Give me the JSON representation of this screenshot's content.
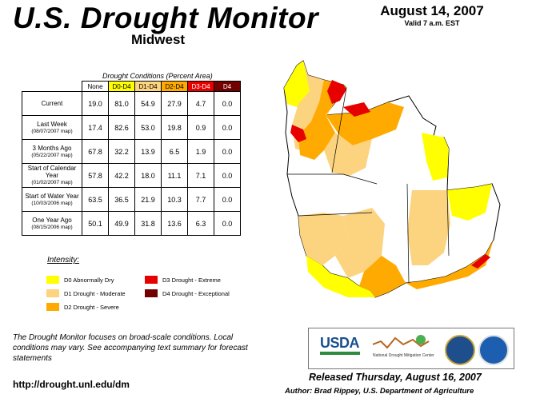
{
  "title": "U.S. Drought Monitor",
  "region": "Midwest",
  "date": "August 14, 2007",
  "valid": "Valid 7 a.m. EST",
  "table": {
    "title": "Drought Conditions (Percent Area)",
    "headers": [
      "None",
      "D0-D4",
      "D1-D4",
      "D2-D4",
      "D3-D4",
      "D4"
    ],
    "header_colors": [
      "#ffffff",
      "#ffff00",
      "#fcd37f",
      "#ffaa00",
      "#e60000",
      "#730000"
    ],
    "header_text_colors": [
      "#000000",
      "#000000",
      "#000000",
      "#000000",
      "#ffffff",
      "#ffffff"
    ],
    "rows": [
      {
        "label": "Current",
        "sub": "",
        "values": [
          "19.0",
          "81.0",
          "54.9",
          "27.9",
          "4.7",
          "0.0"
        ]
      },
      {
        "label": "Last Week",
        "sub": "(08/07/2007 map)",
        "values": [
          "17.4",
          "82.6",
          "53.0",
          "19.8",
          "0.9",
          "0.0"
        ]
      },
      {
        "label": "3 Months Ago",
        "sub": "(05/22/2007 map)",
        "values": [
          "67.8",
          "32.2",
          "13.9",
          "6.5",
          "1.9",
          "0.0"
        ]
      },
      {
        "label": "Start of Calendar Year",
        "sub": "(01/02/2007 map)",
        "values": [
          "57.8",
          "42.2",
          "18.0",
          "11.1",
          "7.1",
          "0.0"
        ]
      },
      {
        "label": "Start of Water Year",
        "sub": "(10/03/2006 map)",
        "values": [
          "63.5",
          "36.5",
          "21.9",
          "10.3",
          "7.7",
          "0.0"
        ]
      },
      {
        "label": "One Year Ago",
        "sub": "(08/15/2006 map)",
        "values": [
          "50.1",
          "49.9",
          "31.8",
          "13.6",
          "6.3",
          "0.0"
        ]
      }
    ]
  },
  "legend": {
    "title": "Intensity:",
    "items": [
      {
        "label": "D0 Abnormally Dry",
        "color": "#ffff00"
      },
      {
        "label": "D1 Drought - Moderate",
        "color": "#fcd37f"
      },
      {
        "label": "D2 Drought - Severe",
        "color": "#ffaa00"
      },
      {
        "label": "D3 Drought - Extreme",
        "color": "#e60000"
      },
      {
        "label": "D4 Drought - Exceptional",
        "color": "#730000"
      }
    ]
  },
  "footnote": "The Drought Monitor focuses on broad-scale conditions. Local conditions may vary. See accompanying text summary for forecast statements",
  "url": "http://drought.unl.edu/dm",
  "released": "Released Thursday, August 16, 2007",
  "author": "Author: Brad Rippey, U.S. Department of Agriculture",
  "logos": {
    "usda": "USDA",
    "ndmc": "National Drought Mitigation Center"
  },
  "map_colors": {
    "none": "#ffffff",
    "d0": "#ffff00",
    "d1": "#fcd37f",
    "d2": "#ffaa00",
    "d3": "#e60000",
    "border": "#000000"
  }
}
